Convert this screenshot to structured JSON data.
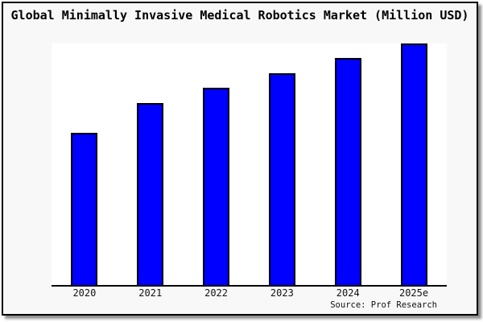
{
  "title": "Global Minimally Invasive Medical Robotics Market (Million USD)",
  "source_note": "Source: Prof Research",
  "colors": {
    "bar_fill": "#0000ff",
    "bar_border": "#000000",
    "canvas_bg": "#f8f8f8",
    "plot_bg": "#ffffff",
    "axis": "#000000"
  },
  "chart_data": {
    "type": "bar",
    "title": "Global Minimally Invasive Medical Robotics Market (Million USD)",
    "categories": [
      "2020",
      "2021",
      "2022",
      "2023",
      "2024",
      "2025e"
    ],
    "values": [
      63,
      75.4,
      81.6,
      87.8,
      94,
      100
    ],
    "values_note": "relative bar heights in % of tallest (2025e) bar; no y-axis scale shown in image",
    "xlabel": "",
    "ylabel": "",
    "ylim": [
      0,
      100
    ],
    "grid": false,
    "legend": false,
    "y_axis_visible": false,
    "annotation": "Source: Prof Research"
  }
}
